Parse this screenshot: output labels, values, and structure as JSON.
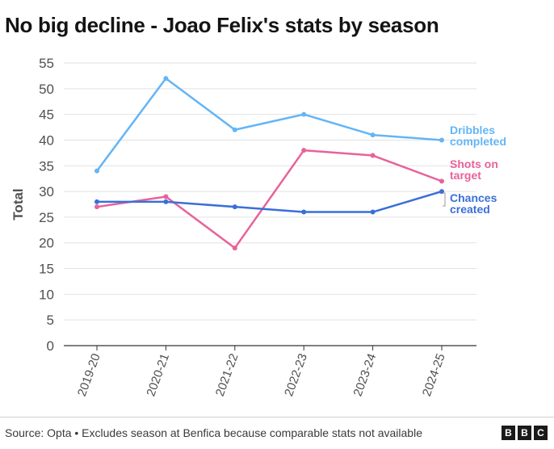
{
  "title": "No big decline - Joao Felix's stats by season",
  "source": "Source: Opta • Excludes season at Benfica because comparable stats not available",
  "logo": [
    "B",
    "B",
    "C"
  ],
  "chart_data": {
    "type": "line",
    "x": [
      "2019-20",
      "2020-21",
      "2021-22",
      "2022-23",
      "2023-24",
      "2024-25"
    ],
    "ylabel": "Total",
    "ylim": [
      0,
      55
    ],
    "yticks": [
      0,
      5,
      10,
      15,
      20,
      25,
      30,
      35,
      40,
      45,
      50,
      55
    ],
    "grid": true,
    "series": [
      {
        "name": "Dribbles completed",
        "label_lines": [
          "Dribbles",
          "completed"
        ],
        "color": "#64b5f6",
        "values": [
          34,
          52,
          42,
          45,
          41,
          40
        ]
      },
      {
        "name": "Shots on target",
        "label_lines": [
          "Shots on",
          "target"
        ],
        "color": "#e8629a",
        "values": [
          27,
          29,
          19,
          38,
          37,
          32
        ]
      },
      {
        "name": "Chances created",
        "label_lines": [
          "Chances",
          "created"
        ],
        "color": "#3a6fd8",
        "values": [
          28,
          28,
          27,
          26,
          26,
          30
        ]
      }
    ]
  }
}
